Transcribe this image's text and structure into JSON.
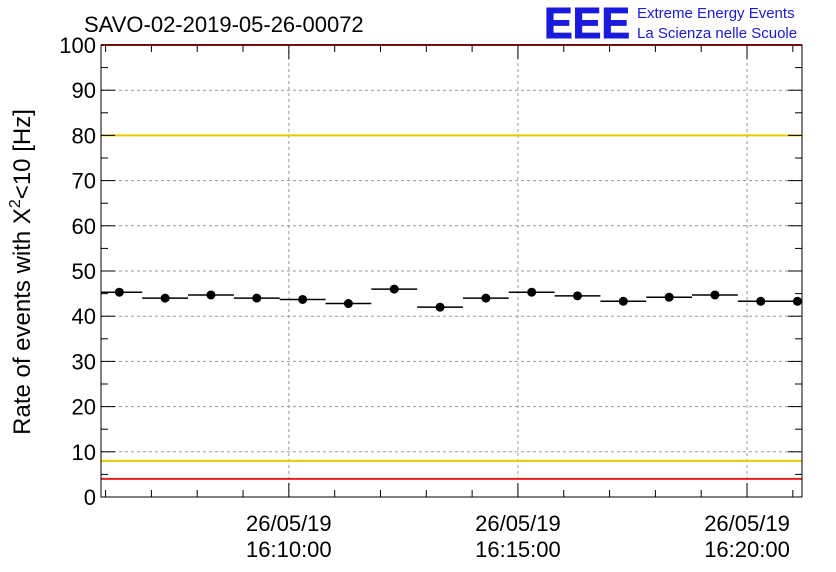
{
  "chart_data": {
    "type": "scatter",
    "title": "SAVO-02-2019-05-26-00072",
    "ylabel_main": "Rate of events with X",
    "ylabel_sup": "2",
    "ylabel_tail": "<10 [Hz]",
    "xlabel": "",
    "ylim": [
      0,
      100
    ],
    "y_ticks": [
      "0",
      "10",
      "20",
      "30",
      "40",
      "50",
      "60",
      "70",
      "80",
      "90",
      "100"
    ],
    "xlim_minutes": [
      5.9,
      21.2
    ],
    "x_ticks": [
      {
        "minute": 10,
        "date": "26/05/19",
        "time": "16:10:00"
      },
      {
        "minute": 15,
        "date": "26/05/19",
        "time": "16:15:00"
      },
      {
        "minute": 20,
        "date": "26/05/19",
        "time": "16:20:00"
      }
    ],
    "bin_width_minutes": 1,
    "series": [
      {
        "name": "rate",
        "x_minutes": [
          6.3,
          7.3,
          8.3,
          9.3,
          10.3,
          11.3,
          12.3,
          13.3,
          14.3,
          15.3,
          16.3,
          17.3,
          18.3,
          19.3,
          20.3,
          21.1
        ],
        "values": [
          45.3,
          44.0,
          44.7,
          44.0,
          43.7,
          42.8,
          46.0,
          42.0,
          44.0,
          45.3,
          44.5,
          43.3,
          44.2,
          44.7,
          43.3,
          43.3
        ]
      }
    ],
    "reference_lines": [
      {
        "name": "upper-red",
        "value": 100,
        "color": "#e82020"
      },
      {
        "name": "upper-yellow",
        "value": 80,
        "color": "#f0c800"
      },
      {
        "name": "lower-yellow",
        "value": 8,
        "color": "#f0c800"
      },
      {
        "name": "lower-red",
        "value": 4,
        "color": "#e82020"
      }
    ]
  },
  "logo": {
    "mark": "EEE",
    "line1": "Extreme Energy Events",
    "line2": "La Scienza nelle Scuole",
    "color": "#1a1adc"
  }
}
